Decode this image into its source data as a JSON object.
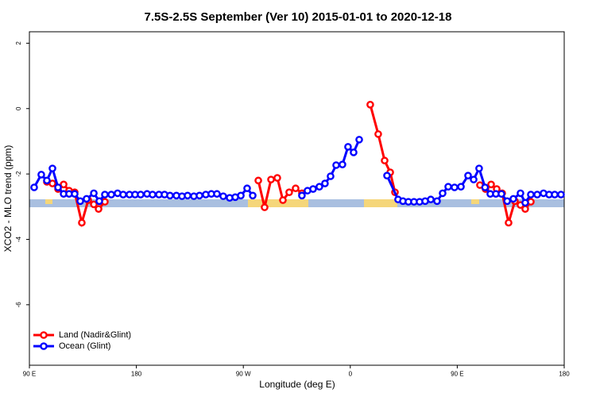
{
  "chart_data": {
    "type": "line",
    "title": "7.5S-2.5S September (Ver 10)   2015-01-01 to 2020-12-18",
    "x_label": "Longitude (deg E)",
    "y_label": "XCO2 - MLO trend (ppm)",
    "xlim": [
      90,
      540
    ],
    "ylim": [
      -7.85,
      2.35
    ],
    "xticks": [
      {
        "value": 90,
        "label": "90 E"
      },
      180,
      {
        "value": 270,
        "label": "90 W"
      },
      {
        "value": 360,
        "label": "0"
      },
      {
        "value": 450,
        "label": "90 E"
      },
      {
        "value": 540,
        "label": "180"
      }
    ],
    "yticks": [
      2,
      0,
      -2,
      -4,
      -6
    ],
    "legend": "bottom-left",
    "series": [
      {
        "name": "Land (Nadir&Glint)",
        "color": "#ff0000",
        "x": [
          104.7,
          109.4,
          114.1,
          118.8,
          123.4,
          128.1,
          134.1,
          139.5,
          144.2,
          148.2,
          153.5,
          null,
          282.6,
          287.9,
          293.3,
          298.6,
          303.3,
          308.6,
          314.0,
          319.3,
          null,
          376.8,
          383.5,
          388.9,
          393.6,
          397.6,
          null,
          469.1,
          473.8,
          478.5,
          483.2,
          487.8,
          493.2,
          498.5,
          503.2,
          507.2,
          511.9
        ],
        "values": [
          -2.24,
          -2.29,
          -2.46,
          -2.32,
          -2.51,
          -2.56,
          -3.49,
          -2.8,
          -2.93,
          -3.07,
          -2.85,
          null,
          -2.2,
          -3.02,
          -2.17,
          -2.12,
          -2.8,
          -2.56,
          -2.44,
          -2.59,
          null,
          0.12,
          -0.78,
          -1.59,
          -1.95,
          -2.56,
          null,
          -2.34,
          -2.46,
          -2.32,
          -2.46,
          -2.59,
          -3.49,
          -2.83,
          -2.95,
          -3.07,
          -2.85
        ]
      },
      {
        "name": "Ocean (Glint)",
        "color": "#0000ff",
        "x": [
          94.0,
          100.0,
          104.7,
          109.4,
          114.1,
          118.8,
          123.4,
          128.1,
          132.8,
          138.1,
          144.2,
          148.8,
          153.5,
          158.9,
          164.2,
          168.9,
          174.2,
          178.9,
          183.6,
          189.0,
          193.6,
          199.0,
          203.7,
          208.3,
          213.7,
          218.4,
          223.1,
          228.4,
          233.1,
          238.4,
          243.1,
          247.8,
          253.1,
          258.5,
          263.2,
          267.9,
          273.2,
          277.9,
          null,
          319.3,
          324.0,
          328.7,
          334.0,
          338.7,
          343.4,
          348.1,
          353.4,
          358.1,
          362.8,
          367.5,
          null,
          390.9,
          400.2,
          404.3,
          408.9,
          413.6,
          418.3,
          423.0,
          427.7,
          433.0,
          437.7,
          442.4,
          447.7,
          453.1,
          459.1,
          463.8,
          468.4,
          473.4,
          477.8,
          482.5,
          487.2,
          492.0,
          497.2,
          503.2,
          507.2,
          511.9,
          517.3,
          522.6,
          527.3,
          532.0,
          537.3
        ],
        "values": [
          -2.41,
          -2.02,
          -2.2,
          -1.83,
          -2.41,
          -2.61,
          -2.61,
          -2.61,
          -2.83,
          -2.76,
          -2.59,
          -2.83,
          -2.63,
          -2.63,
          -2.59,
          -2.63,
          -2.63,
          -2.63,
          -2.63,
          -2.61,
          -2.63,
          -2.63,
          -2.63,
          -2.66,
          -2.66,
          -2.68,
          -2.66,
          -2.68,
          -2.66,
          -2.63,
          -2.61,
          -2.61,
          -2.68,
          -2.73,
          -2.71,
          -2.66,
          -2.44,
          -2.66,
          null,
          -2.66,
          -2.51,
          -2.46,
          -2.39,
          -2.29,
          -2.07,
          -1.73,
          -1.71,
          -1.17,
          -1.34,
          -0.95,
          null,
          -2.05,
          -2.78,
          -2.83,
          -2.85,
          -2.85,
          -2.85,
          -2.83,
          -2.78,
          -2.83,
          -2.59,
          -2.39,
          -2.41,
          -2.39,
          -2.05,
          -2.17,
          -1.83,
          -2.41,
          -2.61,
          -2.61,
          -2.61,
          -2.83,
          -2.76,
          -2.59,
          -2.88,
          -2.63,
          -2.63,
          -2.59,
          -2.63,
          -2.63,
          -2.63
        ]
      }
    ]
  }
}
